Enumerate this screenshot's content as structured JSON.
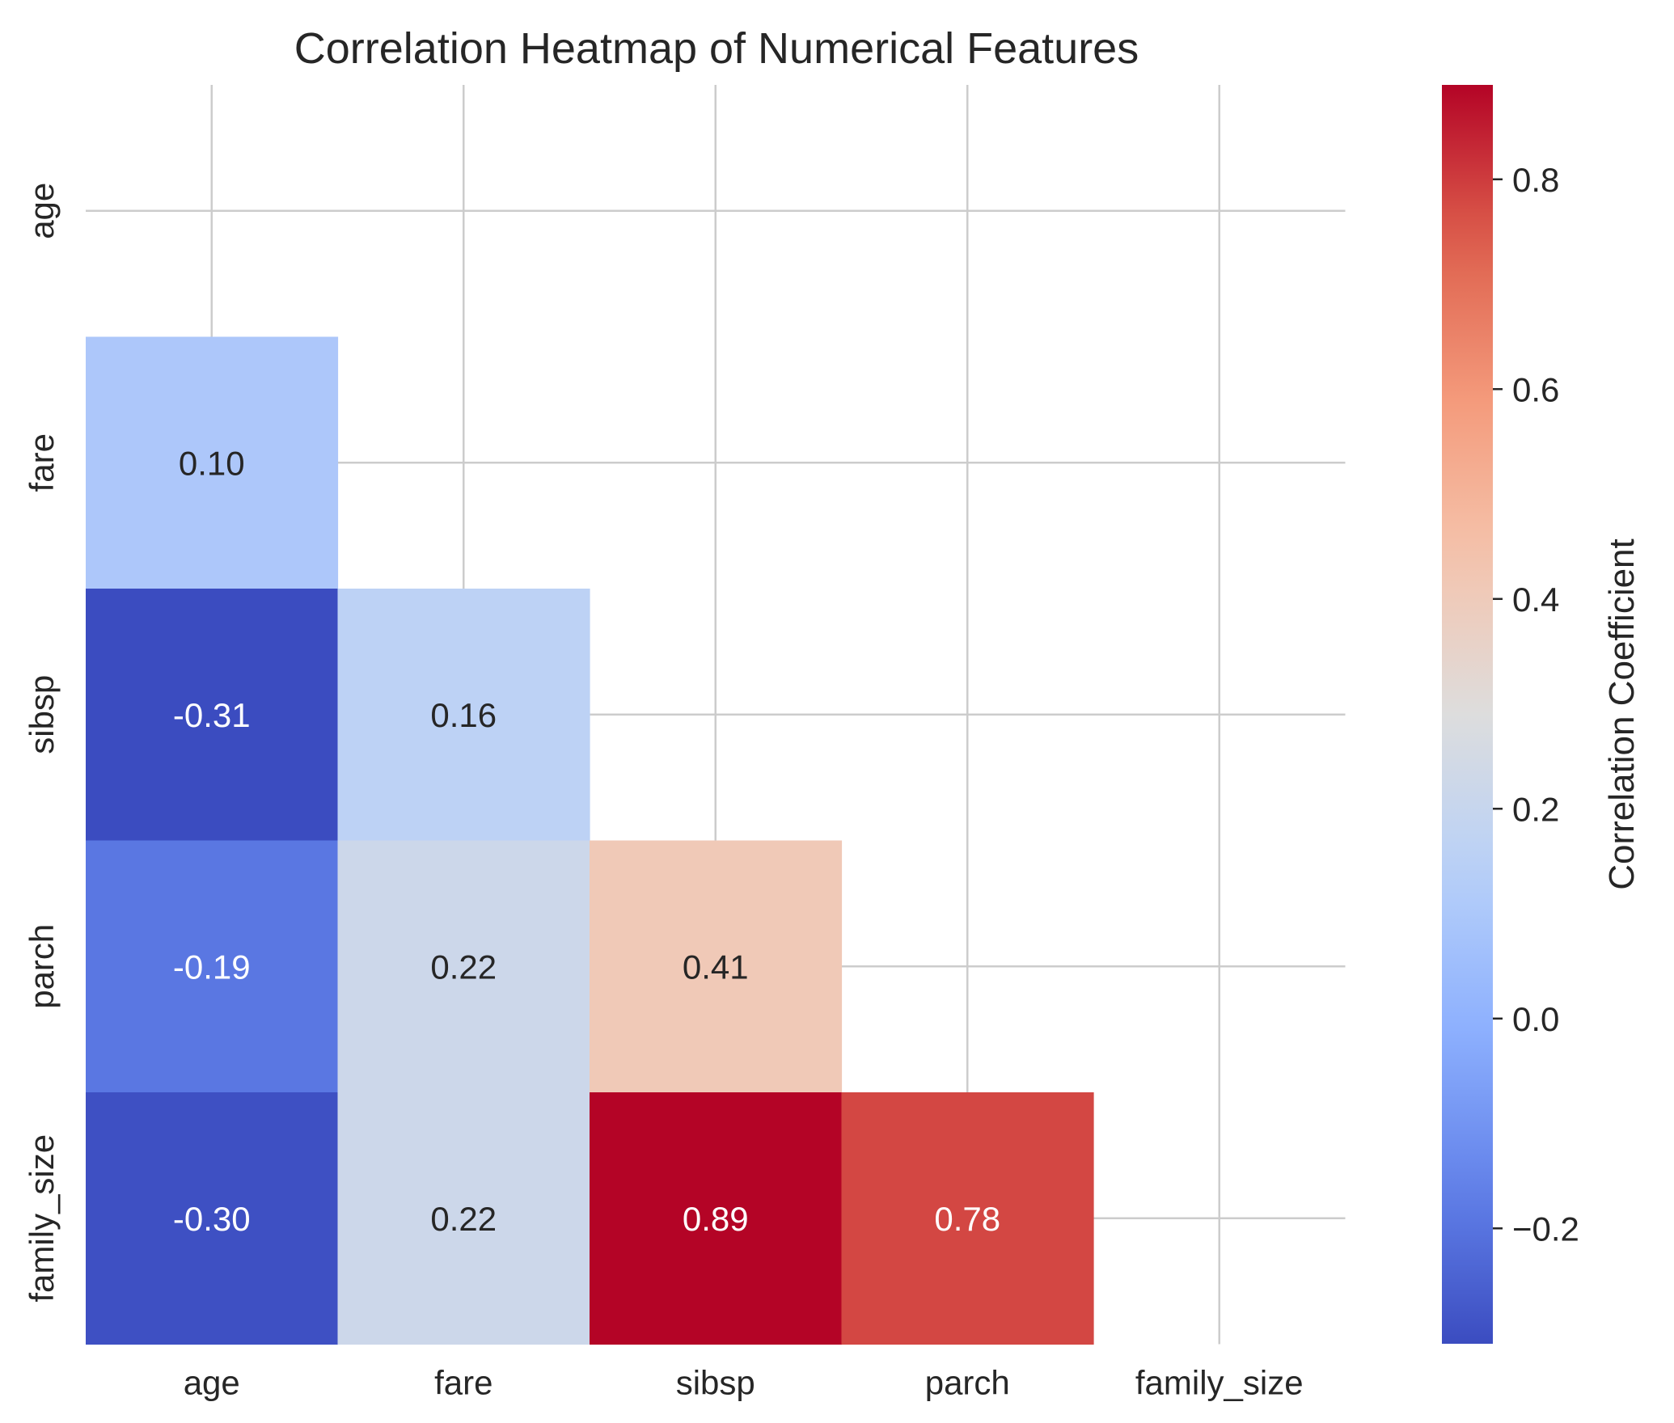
{
  "chart_data": {
    "type": "heatmap",
    "title": "Correlation Heatmap of Numerical Features",
    "xlabel": "",
    "ylabel": "",
    "x_categories": [
      "age",
      "fare",
      "sibsp",
      "parch",
      "family_size"
    ],
    "y_categories": [
      "age",
      "fare",
      "sibsp",
      "parch",
      "family_size"
    ],
    "mask": "upper-triangle-including-diagonal",
    "cells": [
      {
        "row": "fare",
        "col": "age",
        "value": 0.1,
        "label": "0.10"
      },
      {
        "row": "sibsp",
        "col": "age",
        "value": -0.31,
        "label": "-0.31"
      },
      {
        "row": "sibsp",
        "col": "fare",
        "value": 0.16,
        "label": "0.16"
      },
      {
        "row": "parch",
        "col": "age",
        "value": -0.19,
        "label": "-0.19"
      },
      {
        "row": "parch",
        "col": "fare",
        "value": 0.22,
        "label": "0.22"
      },
      {
        "row": "parch",
        "col": "sibsp",
        "value": 0.41,
        "label": "0.41"
      },
      {
        "row": "family_size",
        "col": "age",
        "value": -0.3,
        "label": "-0.30"
      },
      {
        "row": "family_size",
        "col": "fare",
        "value": 0.22,
        "label": "0.22"
      },
      {
        "row": "family_size",
        "col": "sibsp",
        "value": 0.89,
        "label": "0.89"
      },
      {
        "row": "family_size",
        "col": "parch",
        "value": 0.78,
        "label": "0.78"
      }
    ],
    "colormap": "coolwarm",
    "color_range": [
      -0.31,
      0.89
    ],
    "colorbar": {
      "label": "Correlation Coefficient",
      "ticks": [
        -0.2,
        0.0,
        0.2,
        0.4,
        0.6,
        0.8
      ],
      "tick_labels": [
        "−0.2",
        "0.0",
        "0.2",
        "0.4",
        "0.6",
        "0.8"
      ],
      "placement": "right"
    },
    "grid": true
  }
}
